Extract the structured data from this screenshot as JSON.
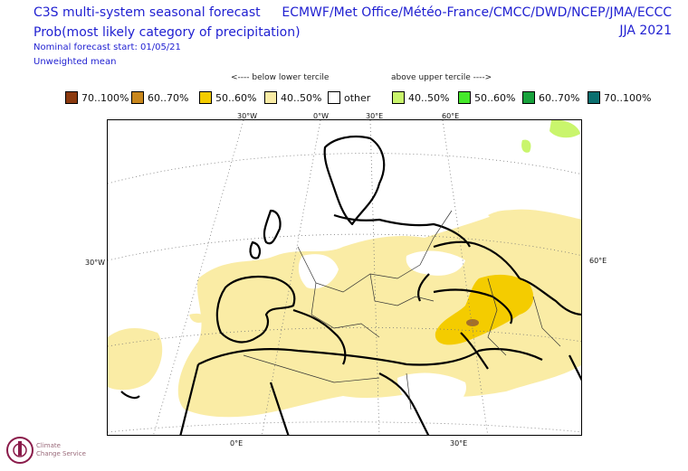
{
  "header": {
    "title_line1": "C3S multi-system seasonal forecast",
    "title_line2": "Prob(most likely category of precipitation)",
    "forecast_start": "Nominal forecast start: 01/05/21",
    "mean_type": "Unweighted mean",
    "centers": "ECMWF/Met Office/Météo-France/CMCC/DWD/NCEP/JMA/ECCC",
    "season": "JJA 2021"
  },
  "legend": {
    "below_label": "<---- below lower tercile",
    "above_label": "above upper tercile ---->",
    "items": [
      {
        "label": "70..100%",
        "color": "#8b3a0f"
      },
      {
        "label": "60..70%",
        "color": "#c8871d"
      },
      {
        "label": "50..60%",
        "color": "#f4cc00"
      },
      {
        "label": "40..50%",
        "color": "#faeca5"
      },
      {
        "label": "other",
        "color": "#ffffff"
      },
      {
        "label": "40..50%",
        "color": "#c9f56c"
      },
      {
        "label": "50..60%",
        "color": "#45e82b"
      },
      {
        "label": "60..70%",
        "color": "#18a13c"
      },
      {
        "label": "70..100%",
        "color": "#0b6f6f"
      }
    ]
  },
  "map": {
    "top_labels": [
      "30°W",
      "0°W",
      "30°E",
      "60°E"
    ],
    "left_label": "30°W",
    "right_label": "60°E",
    "bottom_labels": [
      "0°E",
      "30°E"
    ]
  },
  "logo": {
    "line1": "Climate",
    "line2": "Change Service"
  }
}
